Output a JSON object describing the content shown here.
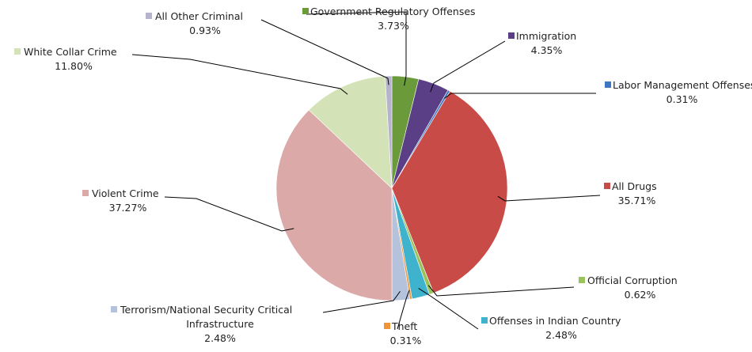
{
  "chart_data": {
    "type": "pie",
    "slices": [
      {
        "name": "Government Regulatory Offenses",
        "label": "3.73%",
        "value": 3.73,
        "color": "#6a9a3a"
      },
      {
        "name": "Immigration",
        "label": "4.35%",
        "value": 4.35,
        "color": "#5b3f86"
      },
      {
        "name": "Labor Management Offenses",
        "label": "0.31%",
        "value": 0.31,
        "color": "#3b78c2"
      },
      {
        "name": "All Drugs",
        "label": "35.71%",
        "value": 35.71,
        "color": "#c94b47"
      },
      {
        "name": "Official Corruption",
        "label": "0.62%",
        "value": 0.62,
        "color": "#9cc25c"
      },
      {
        "name": "Offenses in Indian Country",
        "label": "2.48%",
        "value": 2.48,
        "color": "#3fb2cd"
      },
      {
        "name": "Theft",
        "label": "0.31%",
        "value": 0.31,
        "color": "#f0953a"
      },
      {
        "name": "Terrorism/National Security Critical Infrastructure",
        "label": "2.48%",
        "value": 2.48,
        "color": "#b4c2dc"
      },
      {
        "name": "Violent Crime",
        "label": "37.27%",
        "value": 37.27,
        "color": "#dba9a8"
      },
      {
        "name": "White Collar Crime",
        "label": "11.80%",
        "value": 11.8,
        "color": "#d4e2b7"
      },
      {
        "name": "All Other Criminal",
        "label": "0.93%",
        "value": 0.93,
        "color": "#b6b3cc"
      }
    ]
  }
}
